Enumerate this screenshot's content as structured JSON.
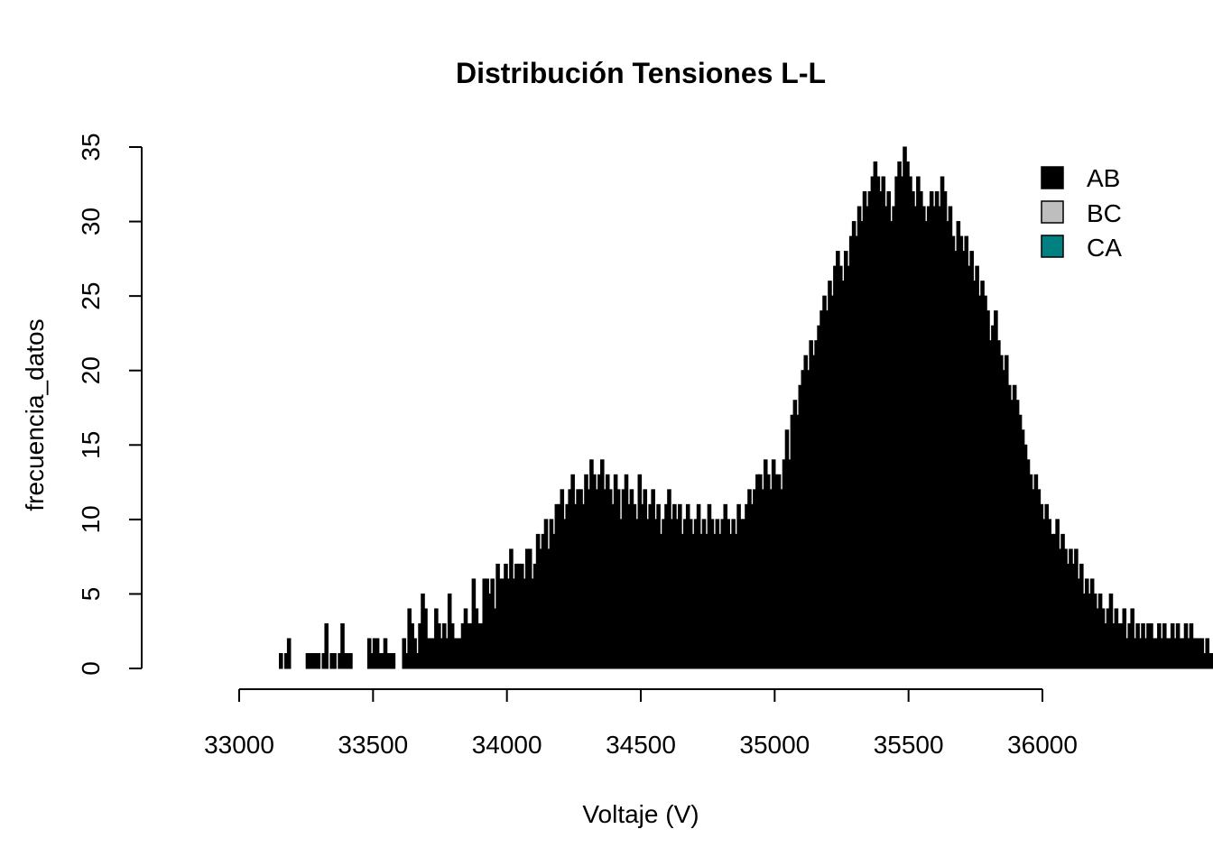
{
  "chart_data": {
    "type": "bar",
    "title": "Distribución Tensiones L-L",
    "xlabel": "Voltaje (V)",
    "ylabel": "frecuencia_datos",
    "xlim": [
      33000,
      36000
    ],
    "ylim": [
      0,
      35
    ],
    "x_ticks": [
      "33000",
      "33500",
      "34000",
      "34500",
      "35000",
      "35500",
      "36000"
    ],
    "y_ticks": [
      "0",
      "5",
      "10",
      "15",
      "20",
      "25",
      "30",
      "35"
    ],
    "legend": {
      "position": "top-right",
      "entries": [
        {
          "label": "AB",
          "color": "#000000"
        },
        {
          "label": "BC",
          "color": "#bebebe"
        },
        {
          "label": "CA",
          "color": "#008080"
        }
      ]
    },
    "series": [
      {
        "name": "AB",
        "color": "#000000",
        "bin_start": 33150,
        "bin_width": 10,
        "values": [
          1,
          0,
          1,
          2,
          0,
          0,
          0,
          0,
          0,
          0,
          1,
          1,
          1,
          1,
          1,
          0,
          1,
          3,
          0,
          1,
          1,
          0,
          1,
          3,
          1,
          1,
          1,
          0,
          0,
          0,
          0,
          0,
          0,
          2,
          1,
          2,
          2,
          1,
          1,
          2,
          1,
          1,
          1,
          0,
          0,
          0,
          2,
          1,
          4,
          3,
          2,
          1,
          3,
          5,
          4,
          2,
          2,
          2,
          4,
          3,
          2,
          3,
          2,
          5,
          3,
          2,
          2,
          2,
          3,
          4,
          3,
          3,
          6,
          4,
          3,
          3,
          6,
          6,
          5,
          6,
          4,
          7,
          6,
          6,
          7,
          6,
          8,
          6,
          7,
          7,
          7,
          6,
          8,
          8,
          6,
          7,
          9,
          8,
          9,
          10,
          8,
          10,
          9,
          11,
          11,
          12,
          10,
          11,
          12,
          13,
          11,
          12,
          12,
          11,
          13,
          12,
          14,
          13,
          12,
          13,
          14,
          12,
          13,
          12,
          11,
          13,
          12,
          10,
          12,
          13,
          11,
          12,
          11,
          10,
          13,
          11,
          12,
          10,
          11,
          12,
          10,
          11,
          9,
          10,
          11,
          12,
          10,
          11,
          10,
          11,
          9,
          10,
          11,
          10,
          9,
          10,
          11,
          9,
          10,
          9,
          11,
          10,
          9,
          10,
          9,
          10,
          11,
          10,
          9,
          10,
          9,
          11,
          10,
          10,
          11,
          12,
          11,
          12,
          13,
          13,
          12,
          14,
          13,
          12,
          14,
          13,
          13,
          12,
          14,
          16,
          14,
          17,
          18,
          17,
          19,
          20,
          21,
          20,
          22,
          21,
          22,
          23,
          24,
          25,
          24,
          26,
          25,
          27,
          28,
          27,
          26,
          28,
          27,
          29,
          30,
          29,
          31,
          30,
          32,
          31,
          32,
          33,
          34,
          33,
          32,
          33,
          31,
          32,
          30,
          31,
          33,
          34,
          33,
          35,
          34,
          33,
          32,
          31,
          33,
          32,
          31,
          30,
          31,
          32,
          31,
          32,
          31,
          33,
          32,
          30,
          31,
          29,
          28,
          30,
          29,
          28,
          29,
          27,
          28,
          26,
          27,
          25,
          26,
          25,
          24,
          22,
          23,
          24,
          22,
          21,
          20,
          21,
          19,
          18,
          19,
          18,
          17,
          16,
          15,
          14,
          13,
          12,
          13,
          12,
          11,
          10,
          11,
          10,
          9,
          9,
          10,
          8,
          9,
          8,
          7,
          8,
          7,
          8,
          6,
          7,
          5,
          6,
          5,
          6,
          5,
          4,
          5,
          4,
          3,
          4,
          5,
          3,
          4,
          3,
          3,
          4,
          2,
          3,
          4,
          2,
          3,
          2,
          3,
          2,
          3,
          3,
          2,
          2,
          3,
          2,
          3,
          2,
          2,
          3,
          2,
          3,
          2,
          2,
          3,
          2,
          3,
          2,
          2,
          2,
          2,
          1,
          2,
          1,
          1,
          1,
          1,
          0,
          1
        ]
      },
      {
        "name": "BC",
        "color": "#bebebe",
        "values": []
      },
      {
        "name": "CA",
        "color": "#008080",
        "values": []
      }
    ]
  }
}
